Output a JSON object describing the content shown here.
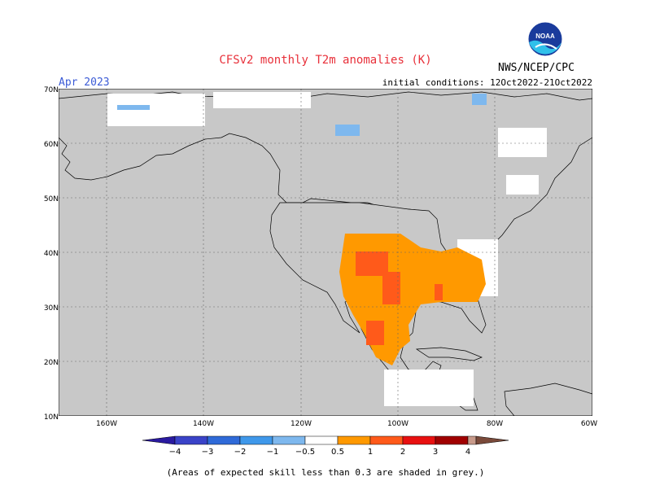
{
  "header": {
    "title": "CFSv2 monthly T2m anomalies (K)",
    "month": "Apr 2023",
    "initial_conditions": "initial conditions: 12Oct2022-21Oct2022",
    "agency": "NWS/NCEP/CPC",
    "logo_text": "NOAA"
  },
  "map": {
    "lat_labels": [
      "70N",
      "60N",
      "50N",
      "40N",
      "30N",
      "20N",
      "10N"
    ],
    "lon_labels": [
      "160W",
      "140W",
      "120W",
      "100W",
      "80W",
      "60W"
    ],
    "lat_range": [
      10,
      70
    ],
    "lon_range": [
      -170,
      -60
    ],
    "grid": true,
    "ocean_color": "#c8c8c8"
  },
  "colorbar": {
    "labels": [
      "−4",
      "−3",
      "−2",
      "−1",
      "−0.5",
      "0.5",
      "1",
      "2",
      "3",
      "4"
    ],
    "colors": [
      "#2a1aa0",
      "#3a43c8",
      "#2f6ad8",
      "#3f98ea",
      "#7eb8ee",
      "#ffffff",
      "#ff9900",
      "#ff5a1a",
      "#e81010",
      "#a00000",
      "#c89a8a",
      "#7a4a3a"
    ]
  },
  "footnote": "(Areas of expected skill less than 0.3 are shaded in grey.)"
}
